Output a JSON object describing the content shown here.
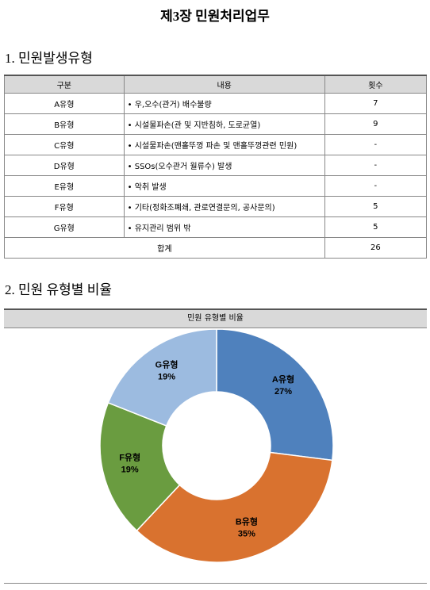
{
  "title": "제3장  민원처리업무",
  "section1": {
    "heading": "1. 민원발생유형",
    "table": {
      "header": [
        "구분",
        "내용",
        "횟수"
      ],
      "rows": [
        [
          "A유형",
          "• 우,오수(관거) 배수불량",
          "7"
        ],
        [
          "B유형",
          "• 시설물파손(관 및 지반침하, 도로균열)",
          "9"
        ],
        [
          "C유형",
          "• 시설물파손(맨홀뚜껑 파손 및 맨홀뚜껑관련 민원)",
          "-"
        ],
        [
          "D유형",
          "• SSOs(오수관거 월류수) 발생",
          "-"
        ],
        [
          "E유형",
          "• 악취 발생",
          "-"
        ],
        [
          "F유형",
          "• 기타(정화조폐쇄, 관로연결문의, 공사문의)",
          "5"
        ],
        [
          "G유형",
          "• 유지관리 범위 밖",
          "5"
        ]
      ],
      "total": [
        "합계",
        "26"
      ]
    }
  },
  "section2": {
    "heading": "2. 민원 유형별 비율",
    "chart_data": {
      "type": "donut",
      "title": "민원 유형별 비율",
      "categories": [
        "A유형",
        "B유형",
        "F유형",
        "G유형"
      ],
      "values": [
        27,
        35,
        19,
        19
      ],
      "value_labels": [
        "27%",
        "35%",
        "19%",
        "19%"
      ],
      "colors": [
        "#4f81bd",
        "#d9722f",
        "#6a9c40",
        "#9cbbe0"
      ]
    }
  }
}
